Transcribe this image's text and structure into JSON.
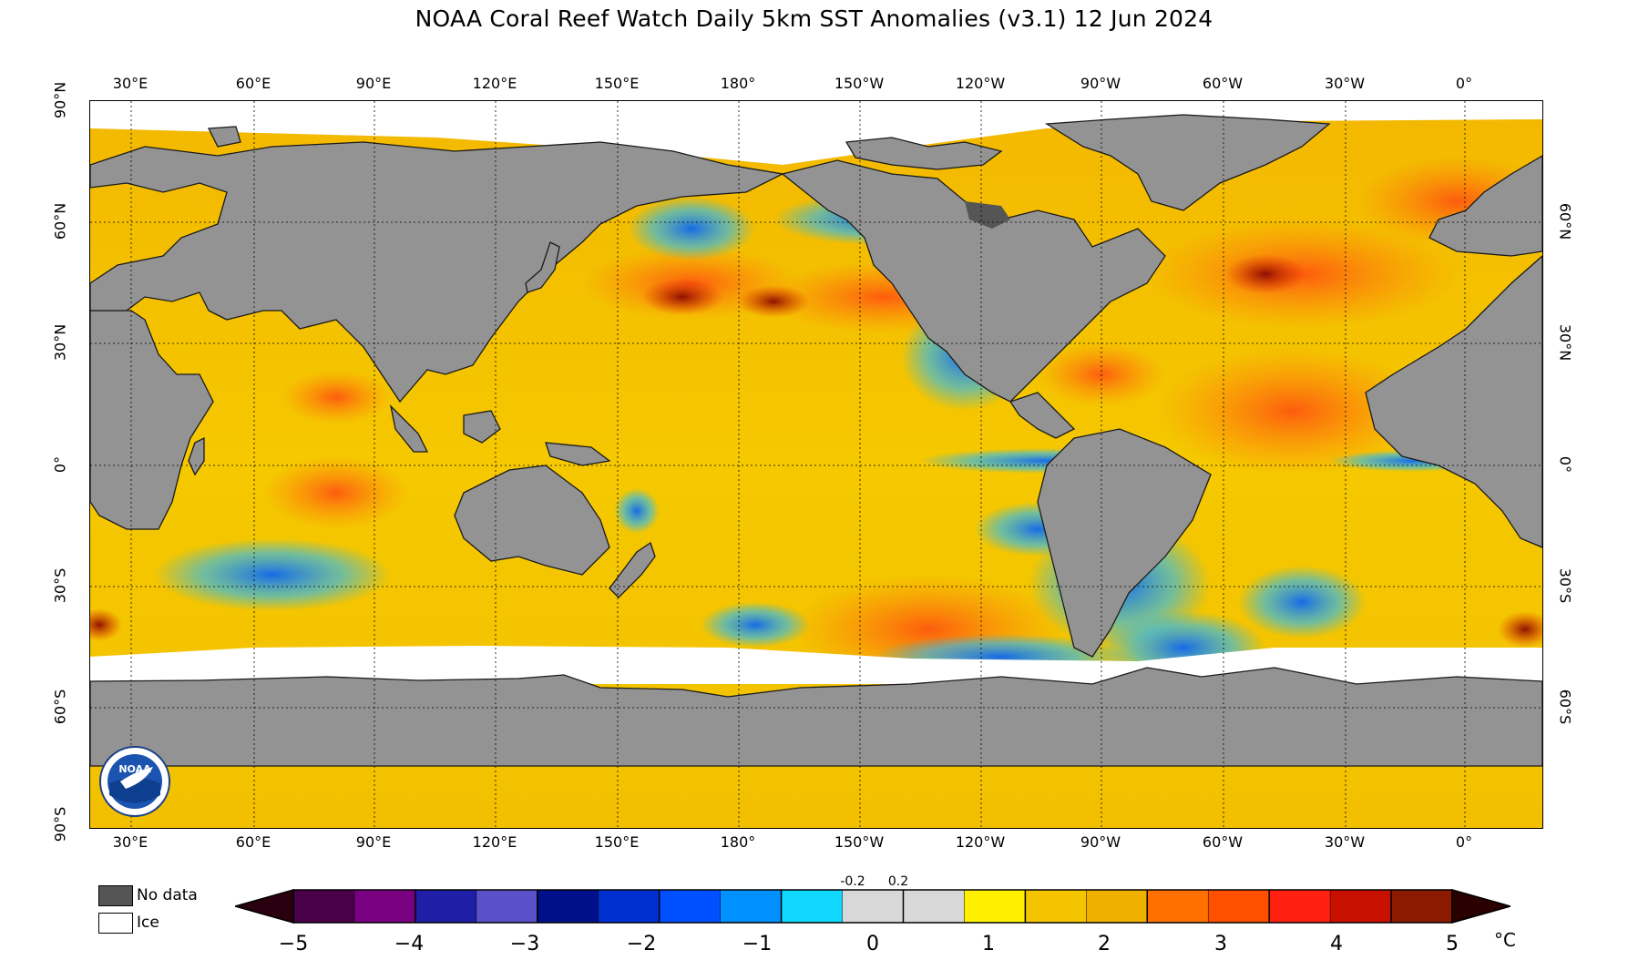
{
  "title": "NOAA Coral Reef Watch Daily 5km SST Anomalies  (v3.1)   12 Jun 2024",
  "longitude_labels": [
    "30°E",
    "60°E",
    "90°E",
    "120°E",
    "150°E",
    "180°",
    "150°W",
    "120°W",
    "90°W",
    "60°W",
    "30°W",
    "0°"
  ],
  "latitude_labels_left": [
    "90°N",
    "60°N",
    "30°N",
    "0°",
    "30°S",
    "60°S",
    "90°S"
  ],
  "latitude_labels_right": [
    "60°N",
    "30°N",
    "0°",
    "30°S",
    "60°S"
  ],
  "legend": {
    "no_data_label": "No data",
    "ice_label": "Ice",
    "no_data_color": "#555555",
    "ice_color": "#ffffff",
    "land_color": "#939393"
  },
  "colorbar": {
    "ticks": [
      "−5",
      "−4",
      "−3",
      "−2",
      "−1",
      "0",
      "1",
      "2",
      "3",
      "4",
      "5"
    ],
    "minor_labels": [
      "-0.2",
      "0.2"
    ],
    "units": "°C",
    "colors": [
      "#2a0010",
      "#4a0048",
      "#7a0082",
      "#1e1ea6",
      "#5a50c8",
      "#00108a",
      "#0030d0",
      "#0050ff",
      "#0090ff",
      "#10d8ff",
      "#d8d8d8",
      "#d8d8d8",
      "#fff000",
      "#f4c400",
      "#f0b000",
      "#ff7000",
      "#ff5000",
      "#ff2010",
      "#c81000",
      "#8a1a00",
      "#2a0000"
    ]
  },
  "logo_text": "NOAA"
}
